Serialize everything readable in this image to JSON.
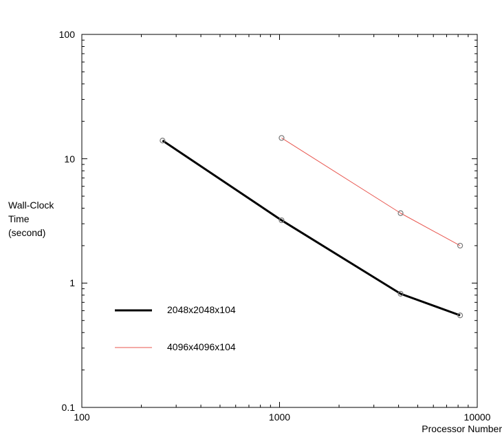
{
  "chart_data": {
    "type": "line",
    "x_scale": "log",
    "y_scale": "log",
    "xlim": [
      100,
      10000
    ],
    "ylim": [
      0.1,
      100
    ],
    "x_ticks": [
      "100",
      "1000",
      "10000"
    ],
    "y_ticks": [
      "0.1",
      "1",
      "10",
      "100"
    ],
    "xlabel": "Processor Number",
    "ylabel_lines": [
      "Wall-Clock",
      "Time",
      "(second)"
    ],
    "grid": false,
    "legend_position": "bottom-left",
    "series": [
      {
        "name": "2048x2048x104",
        "color": "#000000",
        "marker": "circle",
        "x": [
          256,
          1024,
          4096,
          8192
        ],
        "y": [
          14,
          3.2,
          0.82,
          0.55
        ]
      },
      {
        "name": "4096x4096x104",
        "color": "#e8554e",
        "marker": "circle",
        "x": [
          1024,
          4096,
          8192
        ],
        "y": [
          14.7,
          3.65,
          2.0
        ]
      }
    ]
  }
}
